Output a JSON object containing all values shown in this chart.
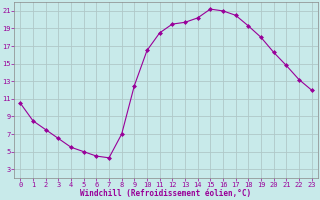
{
  "x": [
    0,
    1,
    2,
    3,
    4,
    5,
    6,
    7,
    8,
    9,
    10,
    11,
    12,
    13,
    14,
    15,
    16,
    17,
    18,
    19,
    20,
    21,
    22,
    23
  ],
  "y": [
    10.5,
    8.5,
    7.5,
    6.5,
    5.5,
    5.0,
    4.5,
    4.3,
    7.0,
    12.5,
    16.5,
    18.5,
    19.5,
    19.7,
    20.2,
    21.2,
    21.0,
    20.5,
    19.3,
    18.0,
    16.3,
    14.8,
    13.2,
    12.0
  ],
  "line_color": "#990099",
  "marker": "D",
  "marker_size": 2.0,
  "bg_color": "#c8eaea",
  "grid_color": "#b0c8c8",
  "xlabel": "Windchill (Refroidissement éolien,°C)",
  "xlabel_color": "#990099",
  "tick_color": "#990099",
  "spine_color": "#888888",
  "ylim": [
    2,
    22
  ],
  "xlim": [
    -0.5,
    23.5
  ],
  "yticks": [
    3,
    5,
    7,
    9,
    11,
    13,
    15,
    17,
    19,
    21
  ],
  "xticks": [
    0,
    1,
    2,
    3,
    4,
    5,
    6,
    7,
    8,
    9,
    10,
    11,
    12,
    13,
    14,
    15,
    16,
    17,
    18,
    19,
    20,
    21,
    22,
    23
  ],
  "tick_fontsize": 5.0,
  "xlabel_fontsize": 5.5
}
